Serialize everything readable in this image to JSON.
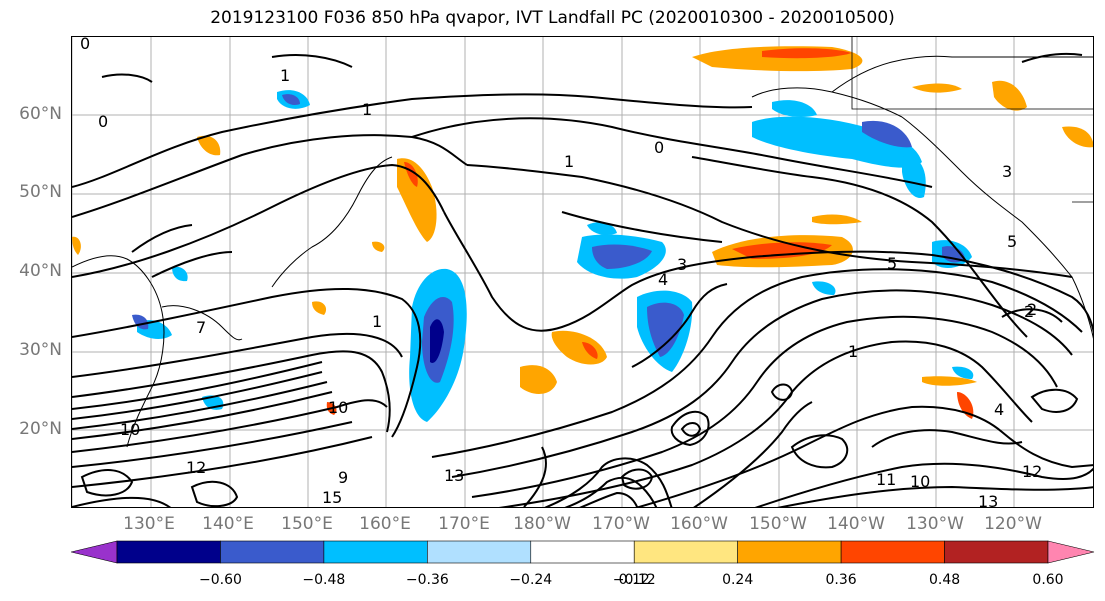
{
  "title": "2019123100 F036 850 hPa qvapor, IVT Landfall PC (2020010300 - 2020010500)",
  "lat_labels": [
    "60°N",
    "50°N",
    "40°N",
    "30°N",
    "20°N"
  ],
  "lon_labels": [
    "130°E",
    "140°E",
    "150°E",
    "160°E",
    "170°E",
    "180°W",
    "170°W",
    "160°W",
    "150°W",
    "140°W",
    "130°W",
    "120°W"
  ],
  "colorbar": {
    "colors": [
      "#9932cc",
      "#00008b",
      "#3a5bcc",
      "#00bfff",
      "#b0e0ff",
      "#ffffff",
      "#ffe680",
      "#ffa500",
      "#ff4500",
      "#b22222",
      "#ff85b0"
    ],
    "ticks": [
      "−0.60",
      "−0.48",
      "−0.36",
      "−0.24",
      "−0.12",
      "0.12",
      "0.24",
      "0.36",
      "0.48",
      "0.60"
    ]
  },
  "contour_labels": [
    "0",
    "1",
    "0",
    "1",
    "1",
    "0",
    "3",
    "4",
    "3",
    "5",
    "5",
    "2",
    "1",
    "10",
    "10",
    "12",
    "9",
    "15",
    "13",
    "11",
    "10",
    "12",
    "13",
    "7",
    "1",
    "2",
    "4"
  ]
}
